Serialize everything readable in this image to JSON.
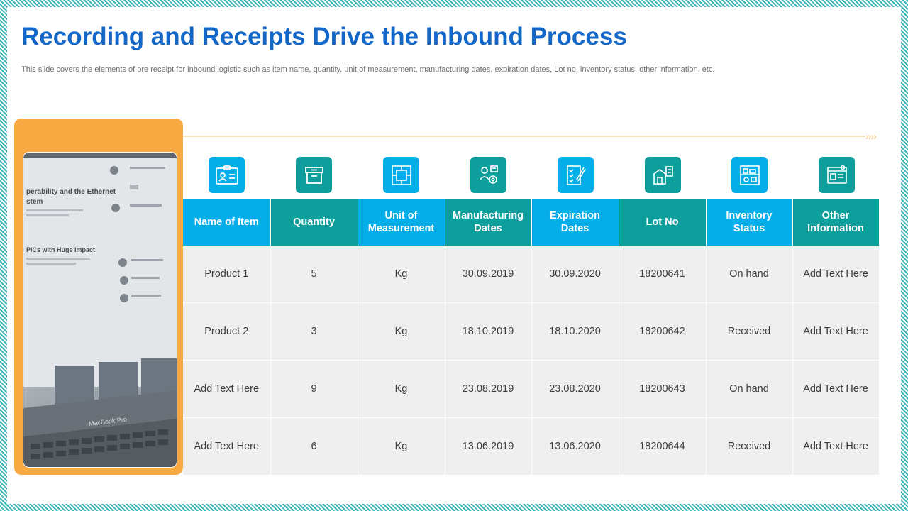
{
  "title": "Recording and Receipts Drive the Inbound Process",
  "subtitle": "This slide covers the elements of pre receipt for inbound logistic such as item name, quantity, unit of measurement,  manufacturing dates, expiration dates, Lot no,  inventory status, other  information, etc.",
  "colors": {
    "title": "#1367c8",
    "blue": "#05aee9",
    "teal": "#0e9f9c",
    "frame": "#f9a941",
    "row_bg": "#efefef"
  },
  "photo": {
    "screen_heading1": "perability and the Ethernet",
    "screen_heading2": "stem",
    "screen_heading3": "PICs with Huge Impact",
    "laptop_label": "MacBook Pro"
  },
  "arrow_chevrons": "››››",
  "columns": [
    {
      "label": "Name of Item",
      "icon": "id-card-icon",
      "color": "blue"
    },
    {
      "label": "Quantity",
      "icon": "storage-box-icon",
      "color": "teal"
    },
    {
      "label": "Unit of Measurement",
      "icon": "blueprint-measure-icon",
      "color": "blue"
    },
    {
      "label": "Manufacturing Dates",
      "icon": "worker-gear-icon",
      "color": "teal"
    },
    {
      "label": "Expiration Dates",
      "icon": "checklist-pen-icon",
      "color": "blue"
    },
    {
      "label": "Lot No",
      "icon": "warehouse-clipboard-icon",
      "color": "teal"
    },
    {
      "label": "Inventory Status",
      "icon": "inventory-shelf-icon",
      "color": "blue"
    },
    {
      "label": "Other Information",
      "icon": "info-card-search-icon",
      "color": "teal"
    }
  ],
  "rows": [
    [
      "Product 1",
      "5",
      "Kg",
      "30.09.2019",
      "30.09.2020",
      "18200641",
      "On hand",
      "Add Text Here"
    ],
    [
      "Product 2",
      "3",
      "Kg",
      "18.10.2019",
      "18.10.2020",
      "18200642",
      "Received",
      "Add Text Here"
    ],
    [
      "Add Text Here",
      "9",
      "Kg",
      "23.08.2019",
      "23.08.2020",
      "18200643",
      "On hand",
      "Add Text Here"
    ],
    [
      "Add Text Here",
      "6",
      "Kg",
      "13.06.2019",
      "13.06.2020",
      "18200644",
      "Received",
      "Add Text Here"
    ]
  ]
}
